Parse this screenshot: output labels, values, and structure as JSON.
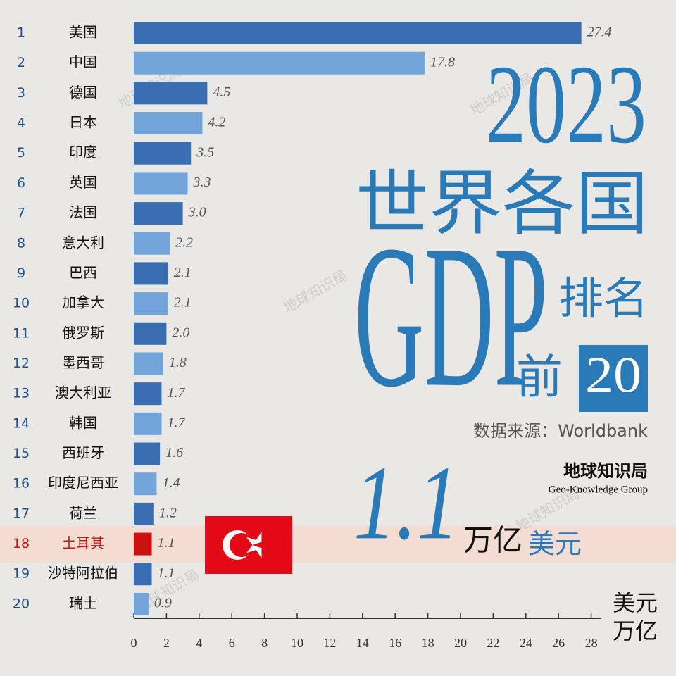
{
  "chart_data": {
    "type": "hbar",
    "title": "2023",
    "subtitle": "世界各国",
    "headline": {
      "gdp": "GDP",
      "rank": "排名",
      "top": "前",
      "count": "20"
    },
    "source": "数据来源：Worldbank",
    "brand": {
      "name": "地球知识局",
      "english": "Geo-Knowledge Group"
    },
    "watermark": "地球知识局",
    "callout": {
      "value": "1.1",
      "unit": "万亿",
      "currency": "美元"
    },
    "axis_unit": [
      "美元",
      "万亿"
    ],
    "ranks": [
      1,
      2,
      3,
      4,
      5,
      6,
      7,
      8,
      9,
      10,
      11,
      12,
      13,
      14,
      15,
      16,
      17,
      18,
      19,
      20
    ],
    "categories": [
      "美国",
      "中国",
      "德国",
      "日本",
      "印度",
      "英国",
      "法国",
      "意大利",
      "巴西",
      "加拿大",
      "俄罗斯",
      "墨西哥",
      "澳大利亚",
      "韩国",
      "西班牙",
      "印度尼西亚",
      "荷兰",
      "土耳其",
      "沙特阿拉伯",
      "瑞士"
    ],
    "values": [
      27.4,
      17.8,
      4.5,
      4.2,
      3.5,
      3.3,
      3.0,
      2.2,
      2.1,
      2.1,
      2.0,
      1.8,
      1.7,
      1.7,
      1.6,
      1.4,
      1.2,
      1.1,
      1.1,
      0.9
    ],
    "value_labels": [
      "27.4",
      "17.8",
      "4.5",
      "4.2",
      "3.5",
      "3.3",
      "3.0",
      "2.2",
      "2.1",
      "2.1",
      "2.0",
      "1.8",
      "1.7",
      "1.7",
      "1.6",
      "1.4",
      "1.2",
      "1.1",
      "1.1",
      "0.9"
    ],
    "colors": [
      "#3a6eb0",
      "#72a4da",
      "#3a6eb0",
      "#72a4da",
      "#3a6eb0",
      "#72a4da",
      "#3a6eb0",
      "#72a4da",
      "#3a6eb0",
      "#72a4da",
      "#3a6eb0",
      "#72a4da",
      "#3a6eb0",
      "#72a4da",
      "#3a6eb0",
      "#72a4da",
      "#3a6eb0",
      "#cc1111",
      "#3a6eb0",
      "#72a4da"
    ],
    "highlight_color": "#cc1111",
    "xlim": [
      0,
      28.6
    ],
    "xticks": [
      0,
      2,
      4,
      6,
      8,
      10,
      12,
      14,
      16,
      18,
      20,
      22,
      24,
      26,
      28
    ]
  }
}
